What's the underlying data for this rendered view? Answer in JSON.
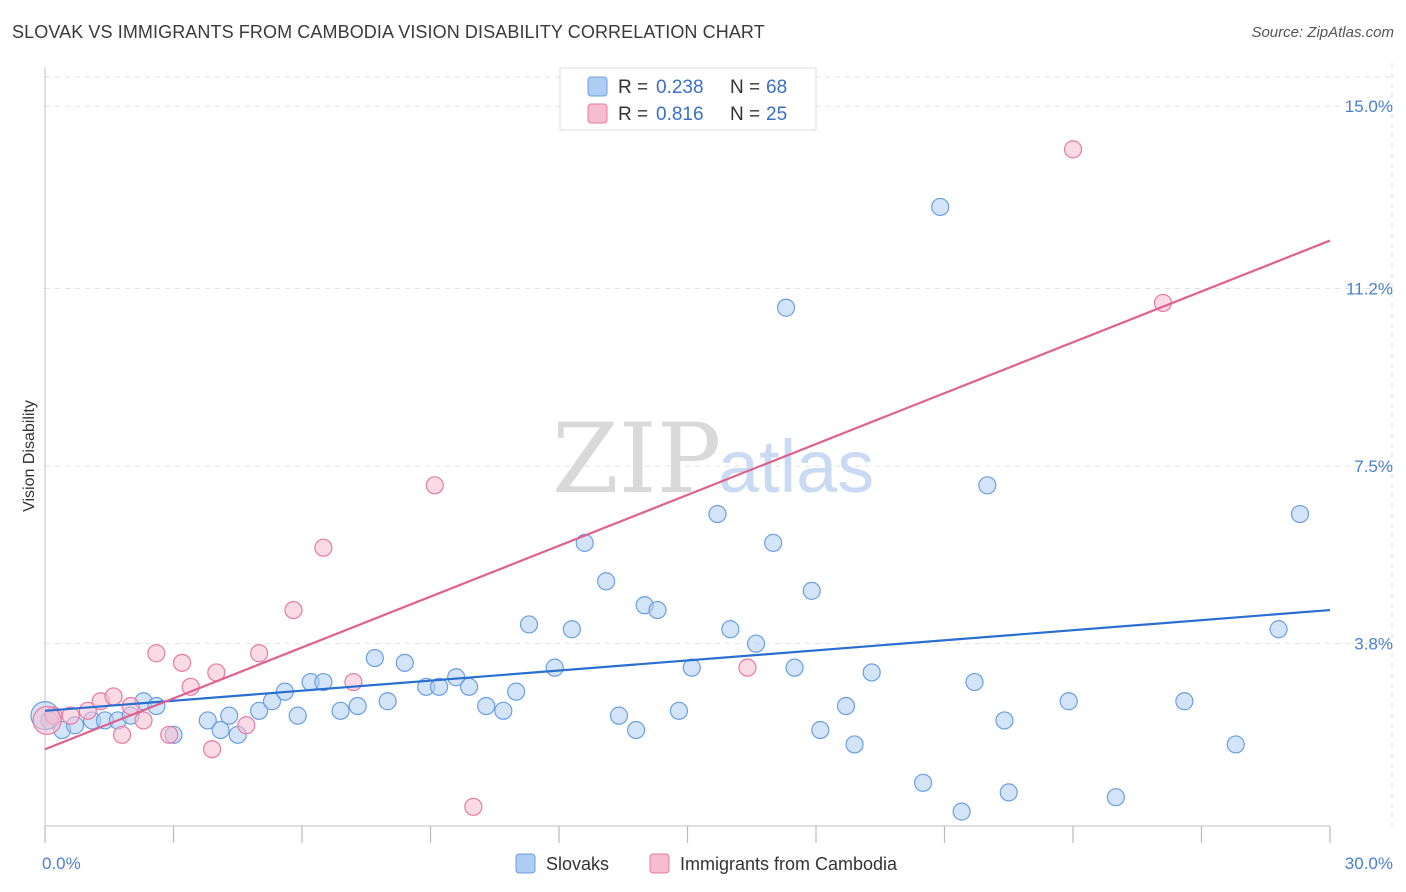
{
  "title": "SLOVAK VS IMMIGRANTS FROM CAMBODIA VISION DISABILITY CORRELATION CHART",
  "source": "Source: ZipAtlas.com",
  "watermark": {
    "zip": "ZIP",
    "atlas": "atlas"
  },
  "legend": {
    "r_label": "R =",
    "n_label": "N =",
    "rows": [
      {
        "r": "0.238",
        "n": "68",
        "color": "#aecdf3"
      },
      {
        "r": "0.816",
        "n": "25",
        "color": "#f6bdd0"
      }
    ]
  },
  "bottom_legend": [
    "Slovaks",
    "Immigrants from Cambodia"
  ],
  "chart_data": {
    "type": "scatter",
    "title": "SLOVAK VS IMMIGRANTS FROM CAMBODIA VISION DISABILITY CORRELATION CHART",
    "xlabel": "",
    "ylabel": "Vision Disability",
    "xlim": [
      0,
      30
    ],
    "ylim": [
      0,
      15.9
    ],
    "x_tick_labels": [
      {
        "value": 0,
        "label": "0.0%"
      },
      {
        "value": 30,
        "label": "30.0%"
      }
    ],
    "y_ticks": [
      {
        "value": 3.8,
        "label": "3.8%"
      },
      {
        "value": 7.5,
        "label": "7.5%"
      },
      {
        "value": 11.2,
        "label": "11.2%"
      },
      {
        "value": 15.0,
        "label": "15.0%"
      }
    ],
    "grid": true,
    "legend_position": "top-center",
    "series": [
      {
        "name": "Slovaks",
        "color": "#6a9fe0",
        "fill": "#aecdf3",
        "trend": {
          "x": [
            0,
            30
          ],
          "y": [
            2.4,
            4.5
          ]
        },
        "points": [
          [
            0.1,
            2.2
          ],
          [
            0.4,
            2.0
          ],
          [
            0.7,
            2.1
          ],
          [
            1.1,
            2.2
          ],
          [
            1.4,
            2.2
          ],
          [
            1.7,
            2.2
          ],
          [
            2.0,
            2.3
          ],
          [
            2.3,
            2.6
          ],
          [
            2.6,
            2.5
          ],
          [
            3.0,
            1.9
          ],
          [
            3.8,
            2.2
          ],
          [
            4.1,
            2.0
          ],
          [
            4.3,
            2.3
          ],
          [
            4.5,
            1.9
          ],
          [
            5.0,
            2.4
          ],
          [
            5.3,
            2.6
          ],
          [
            5.6,
            2.8
          ],
          [
            5.9,
            2.3
          ],
          [
            6.2,
            3.0
          ],
          [
            6.5,
            3.0
          ],
          [
            6.9,
            2.4
          ],
          [
            7.3,
            2.5
          ],
          [
            7.7,
            3.5
          ],
          [
            8.0,
            2.6
          ],
          [
            8.4,
            3.4
          ],
          [
            8.9,
            2.9
          ],
          [
            9.2,
            2.9
          ],
          [
            9.6,
            3.1
          ],
          [
            9.9,
            2.9
          ],
          [
            10.3,
            2.5
          ],
          [
            10.7,
            2.4
          ],
          [
            11.0,
            2.8
          ],
          [
            11.3,
            4.2
          ],
          [
            11.9,
            3.3
          ],
          [
            12.3,
            4.1
          ],
          [
            12.6,
            5.9
          ],
          [
            13.1,
            5.1
          ],
          [
            13.4,
            2.3
          ],
          [
            13.8,
            2.0
          ],
          [
            14.0,
            4.6
          ],
          [
            14.3,
            4.5
          ],
          [
            14.8,
            2.4
          ],
          [
            15.1,
            3.3
          ],
          [
            15.7,
            6.5
          ],
          [
            16.0,
            4.1
          ],
          [
            16.6,
            3.8
          ],
          [
            17.0,
            5.9
          ],
          [
            17.3,
            10.8
          ],
          [
            17.5,
            3.3
          ],
          [
            17.9,
            4.9
          ],
          [
            18.1,
            2.0
          ],
          [
            18.7,
            2.5
          ],
          [
            18.9,
            1.7
          ],
          [
            19.3,
            3.2
          ],
          [
            20.5,
            0.9
          ],
          [
            20.9,
            12.9
          ],
          [
            21.4,
            0.3
          ],
          [
            21.7,
            3.0
          ],
          [
            22.0,
            7.1
          ],
          [
            22.4,
            2.2
          ],
          [
            22.5,
            0.7
          ],
          [
            23.9,
            2.6
          ],
          [
            25.0,
            0.6
          ],
          [
            26.6,
            2.6
          ],
          [
            27.8,
            1.7
          ],
          [
            28.8,
            4.1
          ],
          [
            29.3,
            6.5
          ],
          [
            0.0,
            2.3
          ]
        ]
      },
      {
        "name": "Immigrants from Cambodia",
        "color": "#e87aa3",
        "fill": "#f6bdd0",
        "trend": {
          "x": [
            0,
            30
          ],
          "y": [
            1.6,
            12.2
          ]
        },
        "points": [
          [
            0.2,
            2.3
          ],
          [
            0.6,
            2.3
          ],
          [
            1.0,
            2.4
          ],
          [
            1.3,
            2.6
          ],
          [
            1.6,
            2.7
          ],
          [
            1.8,
            1.9
          ],
          [
            2.0,
            2.5
          ],
          [
            2.3,
            2.2
          ],
          [
            2.6,
            3.6
          ],
          [
            2.9,
            1.9
          ],
          [
            3.2,
            3.4
          ],
          [
            3.4,
            2.9
          ],
          [
            3.9,
            1.6
          ],
          [
            4.0,
            3.2
          ],
          [
            4.7,
            2.1
          ],
          [
            5.0,
            3.6
          ],
          [
            5.8,
            4.5
          ],
          [
            6.5,
            5.8
          ],
          [
            7.2,
            3.0
          ],
          [
            9.1,
            7.1
          ],
          [
            10.0,
            0.4
          ],
          [
            16.4,
            3.3
          ],
          [
            24.0,
            14.1
          ],
          [
            26.1,
            10.9
          ],
          [
            0.05,
            2.2
          ]
        ]
      }
    ]
  }
}
